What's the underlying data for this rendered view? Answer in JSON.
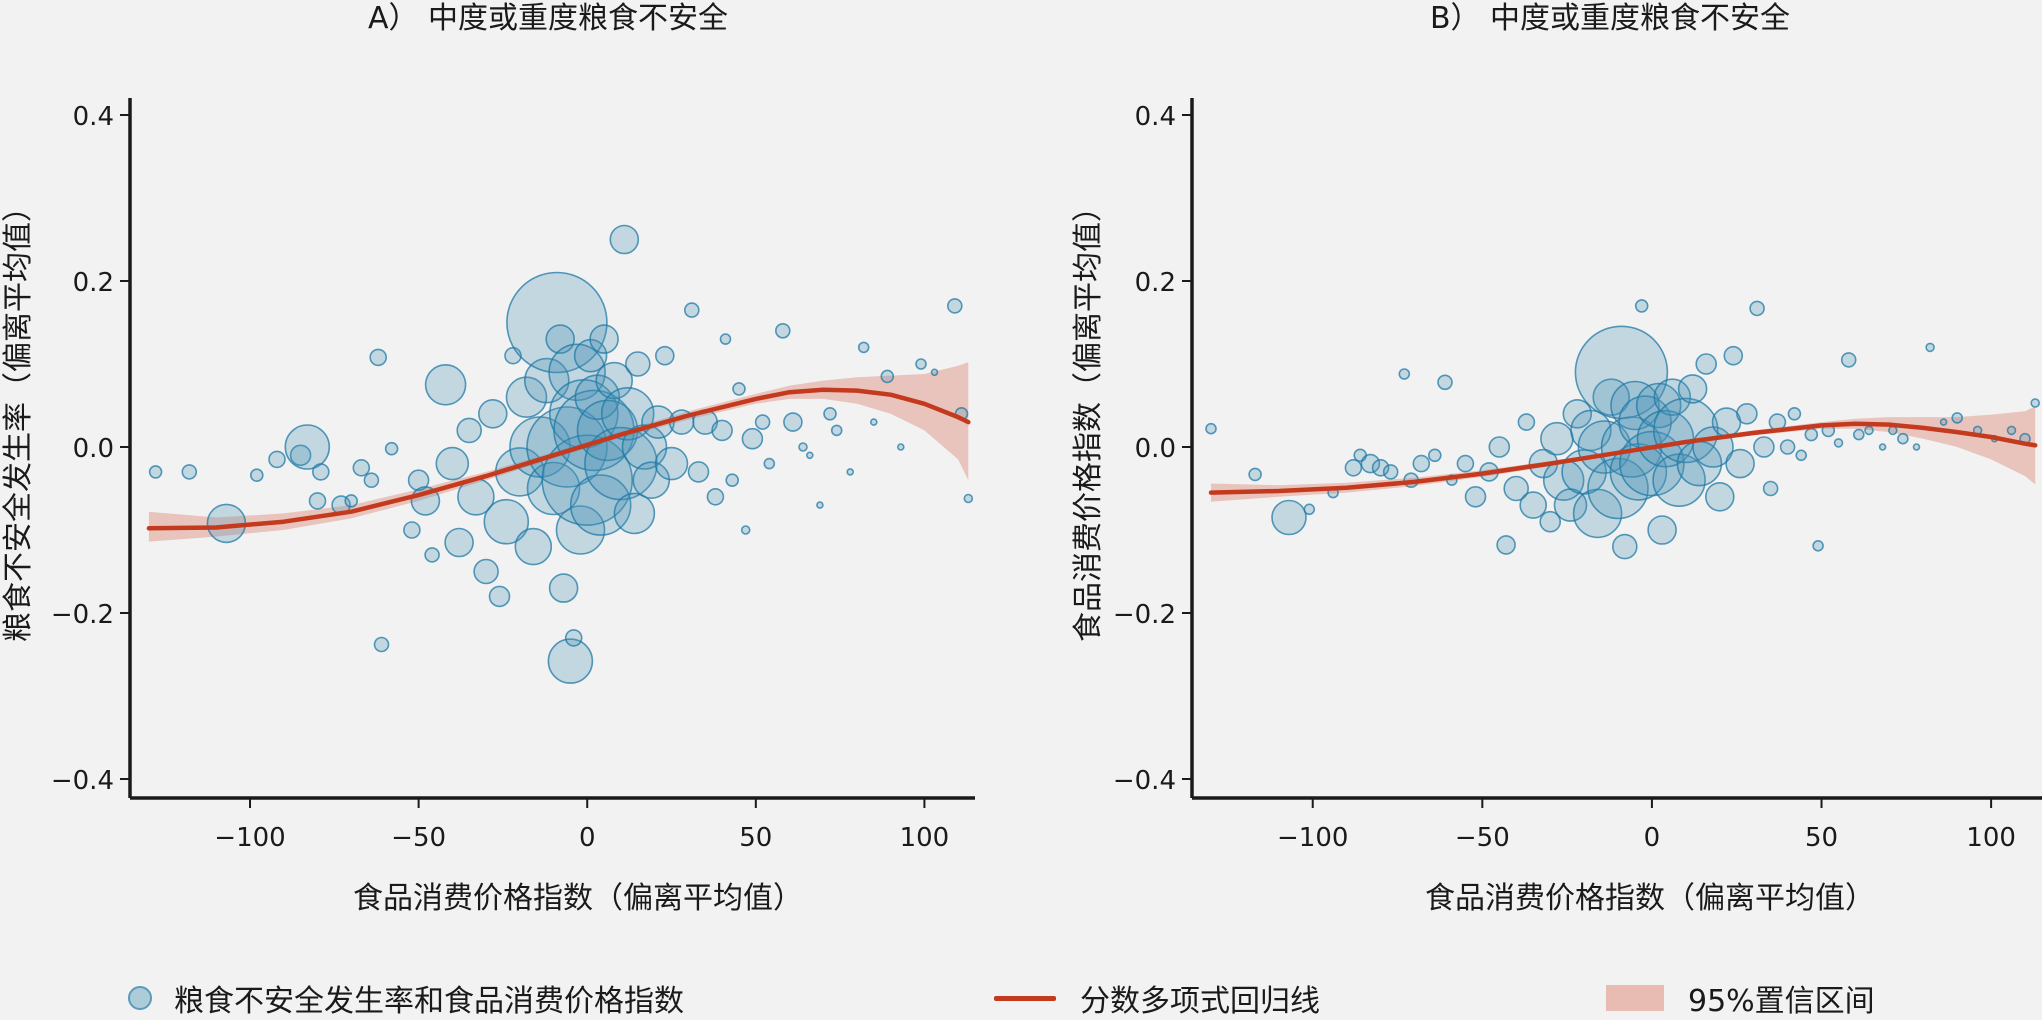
{
  "colors": {
    "bubble_fill": "#4a93b8",
    "bubble_stroke": "#1f7aa6",
    "line": "#c43a1f",
    "band": "#e8bcb3",
    "axis": "#1a1a1a",
    "background": "#f2f2f2"
  },
  "legend": {
    "points_label": "粮食不安全发生率和食品消费价格指数",
    "line_label": "分数多项式回归线",
    "band_label": "95%置信区间"
  },
  "chart_data": [
    {
      "type": "scatter",
      "title": "A） 中度或重度粮食不安全",
      "xlabel": "食品消费价格指数（偏离平均值）",
      "ylabel": "粮食不安全发生率（偏离平均值）",
      "xlim": [
        -135,
        115
      ],
      "ylim": [
        -0.42,
        0.42
      ],
      "x_ticks": [
        -100,
        -50,
        0,
        50,
        100
      ],
      "x_tick_labels": [
        "−100",
        "−50",
        "0",
        "50",
        "100"
      ],
      "y_ticks": [
        0.4,
        0.2,
        0.0,
        -0.2,
        -0.4
      ],
      "y_tick_labels": [
        "0.4",
        "0.2",
        "0.0",
        "−0.2",
        "−0.4"
      ],
      "fit_line": {
        "x": [
          -130,
          -110,
          -90,
          -70,
          -50,
          -30,
          -10,
          10,
          30,
          50,
          60,
          70,
          80,
          90,
          100,
          110,
          113
        ],
        "y": [
          -0.098,
          -0.097,
          -0.09,
          -0.078,
          -0.058,
          -0.035,
          -0.01,
          0.015,
          0.038,
          0.058,
          0.066,
          0.069,
          0.068,
          0.063,
          0.052,
          0.036,
          0.03
        ]
      },
      "ci_band": {
        "x": [
          -130,
          -110,
          -90,
          -70,
          -50,
          -30,
          -10,
          10,
          30,
          50,
          60,
          70,
          80,
          90,
          100,
          110,
          113
        ],
        "lower": [
          -0.114,
          -0.108,
          -0.1,
          -0.086,
          -0.065,
          -0.04,
          -0.014,
          0.011,
          0.033,
          0.052,
          0.058,
          0.058,
          0.052,
          0.04,
          0.02,
          -0.015,
          -0.04
        ],
        "upper": [
          -0.078,
          -0.085,
          -0.08,
          -0.07,
          -0.051,
          -0.03,
          -0.006,
          0.019,
          0.043,
          0.064,
          0.074,
          0.08,
          0.084,
          0.086,
          0.088,
          0.098,
          0.102
        ]
      },
      "points": [
        [
          -128,
          -0.03,
          6
        ],
        [
          -118,
          -0.03,
          7
        ],
        [
          -107,
          -0.092,
          19
        ],
        [
          -98,
          -0.034,
          6
        ],
        [
          -92,
          -0.015,
          8
        ],
        [
          -85,
          -0.01,
          10
        ],
        [
          -83,
          0.0,
          22
        ],
        [
          -80,
          -0.065,
          8
        ],
        [
          -79,
          -0.03,
          8
        ],
        [
          -73,
          -0.07,
          9
        ],
        [
          -70,
          -0.065,
          6
        ],
        [
          -67,
          -0.025,
          8
        ],
        [
          -64,
          -0.04,
          7
        ],
        [
          -62,
          0.108,
          8
        ],
        [
          -61,
          -0.238,
          7
        ],
        [
          -58,
          -0.002,
          6
        ],
        [
          -52,
          -0.1,
          8
        ],
        [
          -50,
          -0.04,
          10
        ],
        [
          -48,
          -0.065,
          14
        ],
        [
          -46,
          -0.13,
          7
        ],
        [
          -42,
          0.075,
          20
        ],
        [
          -40,
          -0.02,
          16
        ],
        [
          -38,
          -0.115,
          14
        ],
        [
          -35,
          0.02,
          12
        ],
        [
          -33,
          -0.06,
          18
        ],
        [
          -30,
          -0.15,
          12
        ],
        [
          -28,
          0.04,
          14
        ],
        [
          -26,
          -0.18,
          10
        ],
        [
          -24,
          -0.09,
          22
        ],
        [
          -22,
          0.11,
          8
        ],
        [
          -20,
          -0.03,
          24
        ],
        [
          -18,
          0.06,
          20
        ],
        [
          -16,
          -0.12,
          18
        ],
        [
          -14,
          0.0,
          30
        ],
        [
          -12,
          0.08,
          22
        ],
        [
          -10,
          -0.05,
          26
        ],
        [
          -9,
          0.15,
          50
        ],
        [
          -8,
          0.13,
          14
        ],
        [
          -7,
          -0.17,
          14
        ],
        [
          -6,
          0.0,
          40
        ],
        [
          -5,
          -0.258,
          22
        ],
        [
          -4,
          -0.23,
          8
        ],
        [
          -3,
          0.09,
          28
        ],
        [
          -2,
          -0.1,
          24
        ],
        [
          -1,
          0.04,
          34
        ],
        [
          0,
          -0.04,
          45
        ],
        [
          1,
          0.11,
          16
        ],
        [
          2,
          0.02,
          40
        ],
        [
          3,
          0.06,
          22
        ],
        [
          4,
          -0.07,
          30
        ],
        [
          5,
          0.13,
          14
        ],
        [
          6,
          0.02,
          30
        ],
        [
          8,
          0.08,
          18
        ],
        [
          10,
          -0.02,
          36
        ],
        [
          11,
          0.25,
          14
        ],
        [
          12,
          0.04,
          26
        ],
        [
          14,
          -0.08,
          20
        ],
        [
          15,
          0.1,
          12
        ],
        [
          17,
          0.0,
          22
        ],
        [
          19,
          -0.04,
          18
        ],
        [
          21,
          0.03,
          16
        ],
        [
          23,
          0.11,
          9
        ],
        [
          25,
          -0.02,
          16
        ],
        [
          28,
          0.03,
          12
        ],
        [
          31,
          0.165,
          7
        ],
        [
          33,
          -0.03,
          10
        ],
        [
          35,
          0.03,
          12
        ],
        [
          38,
          -0.06,
          8
        ],
        [
          40,
          0.02,
          10
        ],
        [
          41,
          0.13,
          5
        ],
        [
          43,
          -0.04,
          6
        ],
        [
          45,
          0.07,
          6
        ],
        [
          47,
          -0.1,
          4
        ],
        [
          49,
          0.01,
          10
        ],
        [
          52,
          0.03,
          7
        ],
        [
          54,
          -0.02,
          5
        ],
        [
          58,
          0.14,
          7
        ],
        [
          61,
          0.03,
          9
        ],
        [
          64,
          0.0,
          4
        ],
        [
          66,
          -0.01,
          3
        ],
        [
          69,
          -0.07,
          3
        ],
        [
          72,
          0.04,
          6
        ],
        [
          74,
          0.02,
          5
        ],
        [
          78,
          -0.03,
          3
        ],
        [
          82,
          0.12,
          5
        ],
        [
          85,
          0.03,
          3
        ],
        [
          89,
          0.085,
          6
        ],
        [
          93,
          0.0,
          3
        ],
        [
          99,
          0.1,
          5
        ],
        [
          103,
          0.09,
          3
        ],
        [
          109,
          0.17,
          7
        ],
        [
          111,
          0.04,
          6
        ],
        [
          113,
          -0.062,
          4
        ]
      ]
    },
    {
      "type": "scatter",
      "title": "B） 中度或重度粮食不安全",
      "xlabel": "食品消费价格指数（偏离平均值）",
      "ylabel": "食品消费价格指数（偏离平均值）",
      "xlim": [
        -135,
        115
      ],
      "ylim": [
        -0.42,
        0.42
      ],
      "x_ticks": [
        -100,
        -50,
        0,
        50,
        100
      ],
      "x_tick_labels": [
        "−100",
        "−50",
        "0",
        "50",
        "100"
      ],
      "y_ticks": [
        0.4,
        0.2,
        0.0,
        -0.2,
        -0.4
      ],
      "y_tick_labels": [
        "0.4",
        "0.2",
        "0.0",
        "−0.2",
        "−0.4"
      ],
      "fit_line": {
        "x": [
          -130,
          -110,
          -90,
          -70,
          -50,
          -30,
          -10,
          10,
          30,
          50,
          60,
          70,
          80,
          90,
          100,
          110,
          113
        ],
        "y": [
          -0.055,
          -0.053,
          -0.049,
          -0.042,
          -0.032,
          -0.02,
          -0.007,
          0.006,
          0.017,
          0.026,
          0.028,
          0.027,
          0.023,
          0.018,
          0.012,
          0.004,
          0.002
        ]
      },
      "ci_band": {
        "x": [
          -130,
          -110,
          -90,
          -70,
          -50,
          -30,
          -10,
          10,
          30,
          50,
          60,
          70,
          80,
          90,
          100,
          110,
          113
        ],
        "lower": [
          -0.066,
          -0.06,
          -0.055,
          -0.047,
          -0.036,
          -0.023,
          -0.009,
          0.004,
          0.014,
          0.022,
          0.022,
          0.018,
          0.01,
          0.0,
          -0.015,
          -0.035,
          -0.045
        ],
        "upper": [
          -0.044,
          -0.046,
          -0.043,
          -0.037,
          -0.028,
          -0.017,
          -0.005,
          0.008,
          0.02,
          0.03,
          0.034,
          0.036,
          0.036,
          0.036,
          0.039,
          0.043,
          0.049
        ]
      },
      "points": [
        [
          -130,
          0.022,
          5
        ],
        [
          -117,
          -0.033,
          6
        ],
        [
          -107,
          -0.085,
          17
        ],
        [
          -101,
          -0.075,
          5
        ],
        [
          -94,
          -0.055,
          5
        ],
        [
          -88,
          -0.025,
          8
        ],
        [
          -86,
          -0.01,
          6
        ],
        [
          -83,
          -0.02,
          9
        ],
        [
          -80,
          -0.025,
          8
        ],
        [
          -77,
          -0.03,
          7
        ],
        [
          -73,
          0.088,
          5
        ],
        [
          -71,
          -0.04,
          7
        ],
        [
          -68,
          -0.02,
          8
        ],
        [
          -64,
          -0.01,
          6
        ],
        [
          -61,
          0.078,
          7
        ],
        [
          -59,
          -0.04,
          5
        ],
        [
          -55,
          -0.02,
          8
        ],
        [
          -52,
          -0.06,
          10
        ],
        [
          -48,
          -0.03,
          9
        ],
        [
          -45,
          0.0,
          10
        ],
        [
          -43,
          -0.118,
          9
        ],
        [
          -40,
          -0.05,
          12
        ],
        [
          -37,
          0.03,
          8
        ],
        [
          -35,
          -0.07,
          13
        ],
        [
          -32,
          -0.02,
          14
        ],
        [
          -30,
          -0.09,
          10
        ],
        [
          -28,
          0.01,
          16
        ],
        [
          -26,
          -0.04,
          20
        ],
        [
          -24,
          -0.07,
          16
        ],
        [
          -22,
          0.04,
          14
        ],
        [
          -20,
          -0.03,
          22
        ],
        [
          -18,
          0.02,
          20
        ],
        [
          -16,
          -0.08,
          24
        ],
        [
          -14,
          0.0,
          26
        ],
        [
          -12,
          0.06,
          18
        ],
        [
          -10,
          -0.05,
          30
        ],
        [
          -9,
          0.09,
          46
        ],
        [
          -8,
          -0.12,
          12
        ],
        [
          -6,
          0.0,
          30
        ],
        [
          -5,
          0.05,
          24
        ],
        [
          -4,
          -0.03,
          28
        ],
        [
          -3,
          0.17,
          6
        ],
        [
          -2,
          0.03,
          26
        ],
        [
          0,
          -0.02,
          32
        ],
        [
          2,
          0.05,
          22
        ],
        [
          3,
          -0.1,
          14
        ],
        [
          4,
          0.01,
          28
        ],
        [
          6,
          0.06,
          18
        ],
        [
          8,
          -0.04,
          26
        ],
        [
          10,
          0.02,
          32
        ],
        [
          12,
          0.07,
          14
        ],
        [
          14,
          -0.02,
          22
        ],
        [
          16,
          0.1,
          10
        ],
        [
          18,
          0.0,
          20
        ],
        [
          20,
          -0.06,
          14
        ],
        [
          22,
          0.03,
          14
        ],
        [
          24,
          0.11,
          9
        ],
        [
          26,
          -0.02,
          14
        ],
        [
          28,
          0.04,
          10
        ],
        [
          31,
          0.167,
          7
        ],
        [
          33,
          0.0,
          10
        ],
        [
          35,
          -0.05,
          7
        ],
        [
          37,
          0.03,
          8
        ],
        [
          40,
          0.0,
          7
        ],
        [
          42,
          0.04,
          6
        ],
        [
          44,
          -0.01,
          5
        ],
        [
          47,
          0.015,
          6
        ],
        [
          49,
          -0.119,
          5
        ],
        [
          52,
          0.02,
          6
        ],
        [
          55,
          0.005,
          4
        ],
        [
          58,
          0.105,
          7
        ],
        [
          61,
          0.015,
          5
        ],
        [
          64,
          0.02,
          4
        ],
        [
          68,
          0.0,
          3
        ],
        [
          71,
          0.02,
          4
        ],
        [
          74,
          0.01,
          5
        ],
        [
          78,
          0.0,
          3
        ],
        [
          82,
          0.12,
          4
        ],
        [
          86,
          0.03,
          3
        ],
        [
          90,
          0.035,
          5
        ],
        [
          96,
          0.02,
          4
        ],
        [
          101,
          0.01,
          3
        ],
        [
          106,
          0.02,
          4
        ],
        [
          110,
          0.01,
          5
        ],
        [
          113,
          0.053,
          4
        ]
      ]
    }
  ]
}
